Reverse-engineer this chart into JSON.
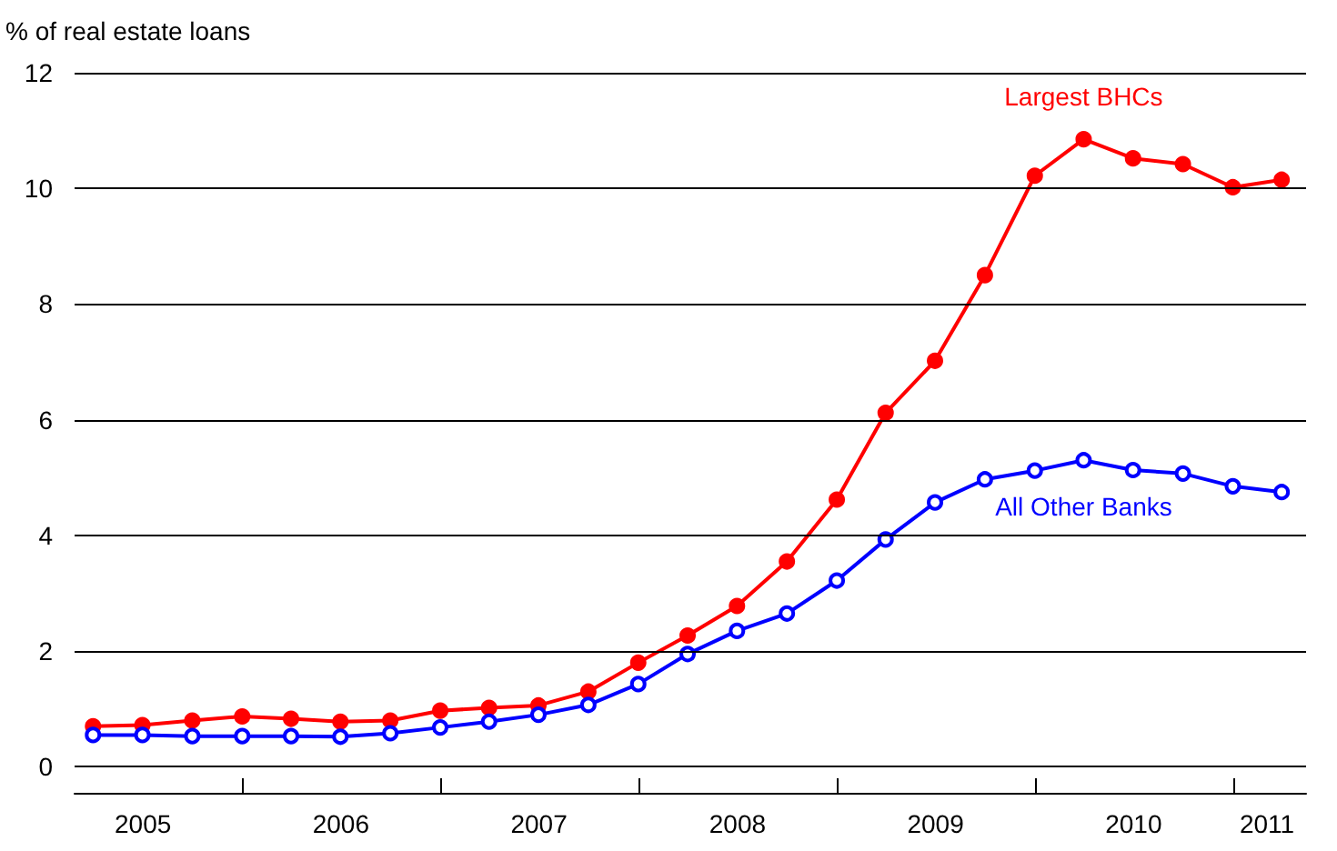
{
  "chart_data": {
    "type": "line",
    "ylabel": "% of real estate loans",
    "x": [
      "2005-03-31",
      "2005-06-30",
      "2005-09-30",
      "2005-12-31",
      "2006-03-31",
      "2006-06-30",
      "2006-09-30",
      "2006-12-31",
      "2007-03-31",
      "2007-06-30",
      "2007-09-30",
      "2007-12-31",
      "2008-03-31",
      "2008-06-30",
      "2008-09-30",
      "2008-12-31",
      "2009-03-31",
      "2009-06-30",
      "2009-09-30",
      "2009-12-31",
      "2010-03-31",
      "2010-06-30",
      "2010-09-30",
      "2010-12-31",
      "2011-03-31"
    ],
    "series": [
      {
        "name": "Largest BHCs",
        "color": "#ff0000",
        "values": [
          0.7,
          0.72,
          0.8,
          0.87,
          0.83,
          0.78,
          0.8,
          0.97,
          1.02,
          1.06,
          1.3,
          1.8,
          2.27,
          2.78,
          3.55,
          4.62,
          6.12,
          7.02,
          8.5,
          10.22,
          10.85,
          10.52,
          10.42,
          10.02,
          10.15
        ]
      },
      {
        "name": "All Other Banks",
        "color": "#0000ff",
        "values": [
          0.55,
          0.55,
          0.53,
          0.53,
          0.53,
          0.52,
          0.58,
          0.68,
          0.78,
          0.9,
          1.07,
          1.43,
          1.95,
          2.35,
          2.65,
          3.22,
          3.93,
          4.57,
          4.97,
          5.12,
          5.3,
          5.13,
          5.07,
          4.85,
          4.75
        ]
      }
    ],
    "xlim": [
      "2005-02-25",
      "2011-05-15"
    ],
    "xticks": [
      {
        "value": "2006-01-01",
        "label": null
      },
      {
        "value": "2007-01-01",
        "label": null
      },
      {
        "value": "2008-01-01",
        "label": null
      },
      {
        "value": "2009-01-01",
        "label": null
      },
      {
        "value": "2010-01-01",
        "label": null
      },
      {
        "value": "2011-01-01",
        "label": null
      },
      {
        "value": "2005-07-01",
        "label": "2005"
      },
      {
        "value": "2006-07-01",
        "label": "2006"
      },
      {
        "value": "2007-07-01",
        "label": "2007"
      },
      {
        "value": "2008-07-01",
        "label": "2008"
      },
      {
        "value": "2009-07-01",
        "label": "2009"
      },
      {
        "value": "2010-07-01",
        "label": "2010"
      },
      {
        "value": "2011-03-04",
        "label": "2011"
      }
    ],
    "ylim": [
      -0.45,
      12
    ],
    "yticks": [
      0,
      2,
      4,
      6,
      8,
      10,
      12
    ],
    "grid": "y",
    "legend": false,
    "marker": "circle",
    "line_style": "solid"
  }
}
